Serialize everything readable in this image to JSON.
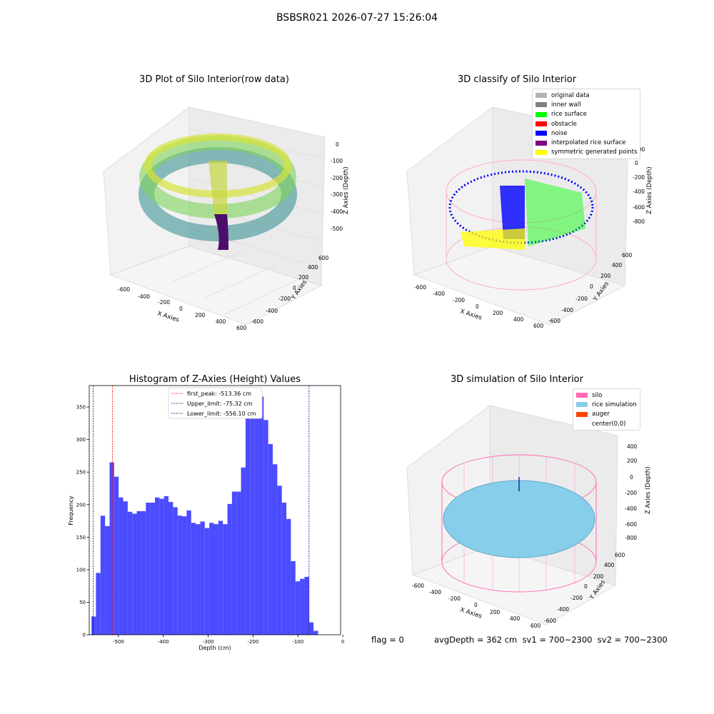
{
  "suptitle": "BSBSR021 2026-07-27 15:26:04",
  "panels": {
    "raw": {
      "title": "3D Plot of Silo Interior(row data)",
      "xlabel": "X Axies",
      "ylabel": "Y Axies",
      "zlabel": "Z Axies (Depth)",
      "xticks": [
        "-600",
        "-400",
        "-200",
        "0",
        "200",
        "400",
        "600"
      ],
      "yticks": [
        "-600",
        "-400",
        "-200",
        "0",
        "200",
        "400",
        "600"
      ],
      "zticks": [
        "0",
        "-100",
        "-200",
        "-300",
        "-400",
        "-500"
      ]
    },
    "classify": {
      "title": "3D classify of Silo Interior",
      "xlabel": "X Axies",
      "ylabel": "Y Axies",
      "zlabel": "Z Axies (Depth)",
      "xticks": [
        "-600",
        "-400",
        "-200",
        "0",
        "200",
        "400",
        "600"
      ],
      "yticks": [
        "-600",
        "-400",
        "-200",
        "0",
        "200",
        "400",
        "600"
      ],
      "zticks": [
        "200",
        "0",
        "-200",
        "-400",
        "-600",
        "-800"
      ],
      "legend": [
        {
          "label": "original data",
          "color": "#b3b3b3"
        },
        {
          "label": "inner wall",
          "color": "#808080"
        },
        {
          "label": "rice surface",
          "color": "#00ff00"
        },
        {
          "label": "obstacle",
          "color": "#ff0000"
        },
        {
          "label": "noise",
          "color": "#0000ff"
        },
        {
          "label": "interpolated rice surface",
          "color": "#800080"
        },
        {
          "label": "symmetric generated points",
          "color": "#ffff00"
        }
      ]
    },
    "simulation": {
      "title": "3D simulation of Silo Interior",
      "xlabel": "X Axies",
      "ylabel": "Y Axies",
      "zlabel": "Z Axies (Depth)",
      "xticks": [
        "-600",
        "-400",
        "-200",
        "0",
        "200",
        "400",
        "600"
      ],
      "yticks": [
        "-600",
        "-400",
        "-200",
        "0",
        "200",
        "400",
        "600"
      ],
      "zticks": [
        "400",
        "200",
        "0",
        "-200",
        "-400",
        "-600",
        "-800"
      ],
      "legend": [
        {
          "label": "silo",
          "color": "#ff69b4"
        },
        {
          "label": "rice simulation",
          "color": "#87ceeb"
        },
        {
          "label": "auger",
          "color": "#ff4500"
        },
        {
          "label": "center(0,0)",
          "color": "#ffffff"
        }
      ]
    }
  },
  "chart_data": [
    {
      "type": "bar",
      "title": "Histogram of Z-Axies (Height) Values",
      "xlabel": "Depth (cm)",
      "ylabel": "Frequency",
      "xlim": [
        -565,
        -5
      ],
      "ylim": [
        0,
        383
      ],
      "xticks": [
        -500,
        -400,
        -300,
        -200,
        -100,
        0
      ],
      "yticks": [
        0,
        50,
        100,
        150,
        200,
        250,
        300,
        350
      ],
      "bin_start": -560.1,
      "bin_width": 10.1,
      "color": "#4b4bff",
      "values": [
        28,
        95,
        183,
        167,
        265,
        243,
        211,
        205,
        189,
        186,
        190,
        190,
        203,
        203,
        211,
        209,
        213,
        204,
        196,
        183,
        182,
        191,
        172,
        170,
        174,
        164,
        172,
        170,
        175,
        170,
        201,
        220,
        220,
        257,
        355,
        336,
        333,
        366,
        330,
        293,
        262,
        229,
        203,
        178,
        113,
        82,
        86,
        89,
        19,
        6
      ],
      "vlines": [
        {
          "label": "first_peak: -513.36 cm",
          "x": -513.36,
          "color": "#ff0000"
        },
        {
          "label": "Upper_limit: -75.32 cm",
          "x": -75.32,
          "color": "#00008b"
        },
        {
          "label": "Lower_limit: -556.10 cm",
          "x": -556.1,
          "color": "#00008b"
        }
      ],
      "legend_position": "upper center"
    }
  ],
  "footer": {
    "flag": "flag = 0",
    "avg": "avgDepth = 362 cm  sv1 = 700~2300  sv2 = 700~2300"
  }
}
